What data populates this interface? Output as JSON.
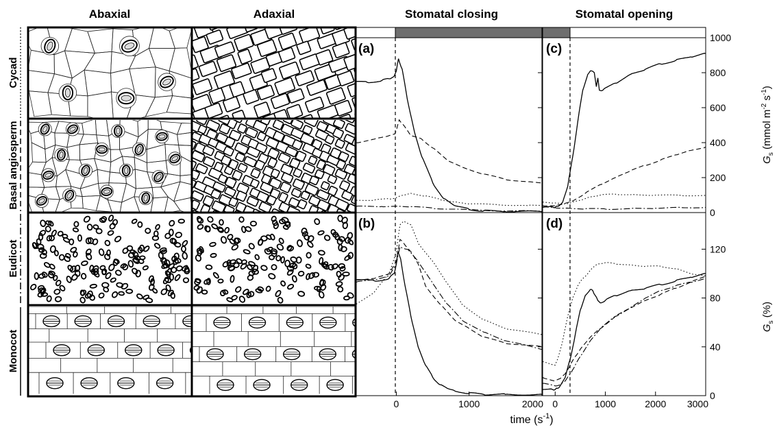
{
  "columns": {
    "abaxial": "Abaxial",
    "adaxial": "Adaxial",
    "closing": "Stomatal closing",
    "opening": "Stomatal opening"
  },
  "rows": [
    {
      "label": "Cycad",
      "line": "dotted"
    },
    {
      "label": "Basal angiosperm",
      "line": "dashed"
    },
    {
      "label": "Eudicot",
      "line": "dashdot"
    },
    {
      "label": "Monocot",
      "line": "solid"
    }
  ],
  "panel_labels": {
    "a": "(a)",
    "b": "(b)",
    "c": "(c)",
    "d": "(d)"
  },
  "axes": {
    "x_label": "time (s",
    "x_label_sup": "-1",
    "x_label_close": ")",
    "closing_ticks": [
      "0",
      "1000",
      "2000"
    ],
    "opening_ticks": [
      "0",
      "1000",
      "2000",
      "3000"
    ],
    "top_ticks": [
      "0",
      "200",
      "400",
      "600",
      "800",
      "1000"
    ],
    "bottom_ticks": [
      "0",
      "40",
      "80",
      "120"
    ],
    "top_ylabel": {
      "g": "G",
      "sub": "s",
      "unit": " (mmol m",
      "sup1": "-2",
      "mid": " s",
      "sup2": "-1",
      "end": ")"
    },
    "bottom_ylabel": {
      "g": "G",
      "sub": "s",
      "unit": " (%)"
    }
  },
  "light_bar": {
    "closing": "dark",
    "opening": "light"
  },
  "chart_data": [
    {
      "type": "line",
      "panel": "(a)",
      "xlim": [
        -550,
        2000
      ],
      "ylim": [
        0,
        1000
      ],
      "series": [
        {
          "line": "solid",
          "x": [
            -550,
            -400,
            -200,
            -100,
            -30,
            0,
            30,
            80,
            150,
            250,
            350,
            500,
            650,
            800,
            1000,
            1200,
            1500,
            2000
          ],
          "y": [
            750,
            745,
            755,
            765,
            780,
            810,
            880,
            820,
            650,
            460,
            320,
            170,
            80,
            40,
            18,
            10,
            6,
            5
          ]
        },
        {
          "line": "dashed",
          "x": [
            -550,
            -300,
            -100,
            -20,
            0,
            40,
            100,
            200,
            350,
            500,
            700,
            900,
            1200,
            1500,
            1800,
            2000
          ],
          "y": [
            400,
            420,
            440,
            450,
            470,
            530,
            500,
            440,
            420,
            370,
            300,
            260,
            220,
            190,
            175,
            170
          ]
        },
        {
          "line": "dotted",
          "x": [
            -550,
            -300,
            -100,
            0,
            100,
            200,
            400,
            600,
            800,
            1000,
            1400,
            1800,
            2000
          ],
          "y": [
            70,
            72,
            78,
            85,
            100,
            110,
            95,
            75,
            60,
            50,
            45,
            40,
            40
          ]
        },
        {
          "line": "dashdot",
          "x": [
            -550,
            -200,
            0,
            200,
            500,
            1000,
            1500,
            2000
          ],
          "y": [
            35,
            35,
            36,
            34,
            25,
            15,
            10,
            8
          ]
        }
      ]
    },
    {
      "type": "line",
      "panel": "(b)",
      "xlim": [
        -550,
        2000
      ],
      "ylim": [
        0,
        150
      ],
      "series": [
        {
          "line": "solid",
          "x": [
            -550,
            -300,
            -100,
            -30,
            0,
            20,
            60,
            120,
            200,
            300,
            400,
            500,
            600,
            700,
            800,
            1000,
            1200,
            1500,
            2000
          ],
          "y": [
            95,
            94,
            96,
            100,
            108,
            118,
            112,
            90,
            65,
            40,
            25,
            15,
            9,
            6,
            4,
            2,
            1,
            1,
            1
          ]
        },
        {
          "line": "dashed",
          "x": [
            -550,
            -300,
            -100,
            0,
            50,
            100,
            200,
            300,
            400,
            600,
            800,
            1000,
            1200,
            1500,
            2000
          ],
          "y": [
            95,
            96,
            100,
            110,
            128,
            125,
            118,
            108,
            90,
            75,
            62,
            55,
            48,
            43,
            40
          ]
        },
        {
          "line": "dotted",
          "x": [
            -550,
            -300,
            -100,
            0,
            50,
            100,
            200,
            300,
            500,
            700,
            900,
            1200,
            1500,
            2000
          ],
          "y": [
            75,
            85,
            100,
            118,
            140,
            143,
            140,
            125,
            110,
            92,
            75,
            62,
            55,
            50
          ]
        },
        {
          "line": "dashdot",
          "x": [
            -550,
            -300,
            -100,
            0,
            50,
            150,
            300,
            500,
            700,
            900,
            1200,
            1500,
            2000
          ],
          "y": [
            93,
            95,
            98,
            108,
            122,
            120,
            110,
            92,
            75,
            62,
            52,
            45,
            38
          ]
        }
      ]
    },
    {
      "type": "line",
      "panel": "(c)",
      "xlim": [
        -250,
        3000
      ],
      "ylim": [
        0,
        1000
      ],
      "series": [
        {
          "line": "solid",
          "x": [
            -250,
            -50,
            0,
            50,
            150,
            250,
            350,
            450,
            550,
            650,
            700,
            780,
            820,
            850,
            880,
            950,
            1200,
            1500,
            1800,
            2100,
            2400,
            2700,
            3000
          ],
          "y": [
            30,
            32,
            30,
            35,
            60,
            150,
            320,
            520,
            700,
            790,
            810,
            800,
            720,
            770,
            700,
            700,
            740,
            790,
            820,
            850,
            870,
            890,
            910
          ]
        },
        {
          "line": "dashed",
          "x": [
            -250,
            0,
            100,
            300,
            600,
            900,
            1200,
            1500,
            1800,
            2100,
            2400,
            2700,
            3000
          ],
          "y": [
            40,
            40,
            45,
            60,
            110,
            160,
            200,
            240,
            270,
            300,
            330,
            355,
            375
          ]
        },
        {
          "line": "dotted",
          "x": [
            -250,
            0,
            100,
            300,
            500,
            700,
            900,
            1200,
            1500,
            2000,
            2500,
            3000
          ],
          "y": [
            60,
            55,
            50,
            55,
            70,
            90,
            100,
            105,
            102,
            100,
            98,
            98
          ]
        },
        {
          "line": "dashdot",
          "x": [
            -250,
            0,
            200,
            600,
            1000,
            1500,
            2000,
            2500,
            3000
          ],
          "y": [
            30,
            28,
            25,
            22,
            20,
            22,
            25,
            28,
            30
          ]
        }
      ]
    },
    {
      "type": "line",
      "panel": "(d)",
      "xlim": [
        -250,
        3000
      ],
      "ylim": [
        0,
        150
      ],
      "series": [
        {
          "line": "solid",
          "x": [
            -250,
            -50,
            0,
            50,
            100,
            200,
            300,
            400,
            500,
            600,
            700,
            750,
            800,
            850,
            900,
            1000,
            1200,
            1500,
            1800,
            2100,
            2400,
            2700,
            3000
          ],
          "y": [
            5,
            5,
            5,
            6,
            8,
            15,
            30,
            50,
            70,
            82,
            87,
            86,
            82,
            78,
            76,
            78,
            82,
            86,
            88,
            91,
            94,
            97,
            100
          ]
        },
        {
          "line": "dashed",
          "x": [
            -250,
            0,
            100,
            200,
            300,
            400,
            500,
            700,
            900,
            1200,
            1500,
            1800,
            2100,
            2400,
            2700,
            3000
          ],
          "y": [
            15,
            12,
            14,
            18,
            25,
            32,
            38,
            48,
            55,
            65,
            72,
            78,
            83,
            88,
            93,
            98
          ]
        },
        {
          "line": "dotted",
          "x": [
            -250,
            0,
            50,
            150,
            250,
            350,
            450,
            550,
            650,
            750,
            850,
            1000,
            1200,
            1500,
            1800,
            2100,
            2400,
            2700,
            3000
          ],
          "y": [
            28,
            25,
            30,
            45,
            65,
            80,
            90,
            96,
            100,
            105,
            108,
            109,
            108,
            107,
            106,
            106,
            104,
            100,
            98
          ]
        },
        {
          "line": "dashdot",
          "x": [
            -250,
            0,
            100,
            200,
            300,
            400,
            500,
            700,
            900,
            1200,
            1500,
            1800,
            2100,
            2400,
            2700,
            3000
          ],
          "y": [
            10,
            8,
            9,
            12,
            18,
            25,
            32,
            45,
            55,
            65,
            72,
            80,
            86,
            90,
            93,
            96
          ]
        }
      ]
    }
  ]
}
